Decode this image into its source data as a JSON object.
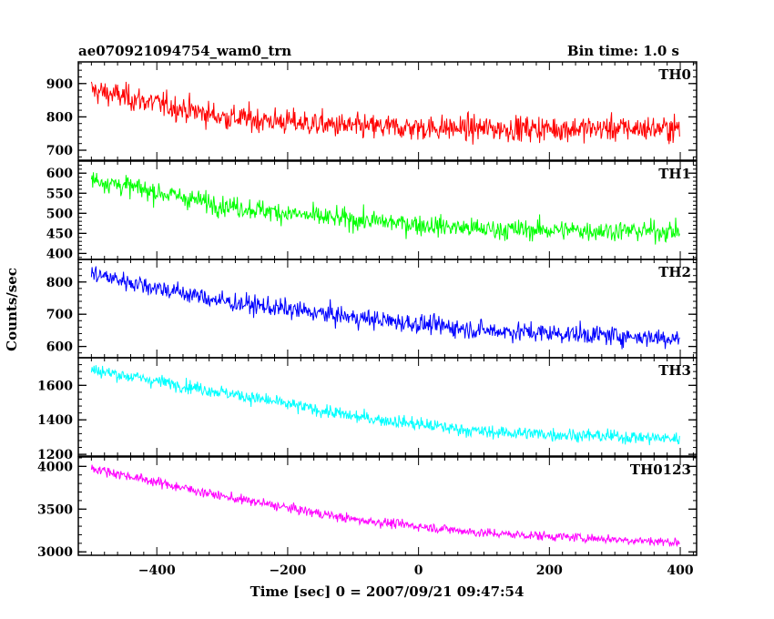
{
  "header": {
    "title": "ae070921094754_wam0_trn",
    "bin_time": "Bin time: 1.0 s"
  },
  "chart_data": {
    "type": "line",
    "title": "ae070921094754_wam0_trn",
    "xlabel": "Time [sec] 0 = 2007/09/21 09:47:54",
    "ylabel": "Counts/sec",
    "xlim": [
      -520,
      425
    ],
    "x_range": [
      -500,
      399
    ],
    "x_ticks": [
      -400,
      -200,
      0,
      200,
      400
    ],
    "bin_seconds": 1.0,
    "panels": [
      {
        "name": "TH0",
        "color": "#ff0000",
        "ylim": [
          670,
          965
        ],
        "y_ticks": [
          700,
          800,
          900
        ],
        "trend": [
          [
            -500,
            880
          ],
          [
            -300,
            800
          ],
          [
            -100,
            770
          ],
          [
            100,
            765
          ],
          [
            400,
            765
          ]
        ],
        "noise": 45
      },
      {
        "name": "TH1",
        "color": "#00ff00",
        "ylim": [
          385,
          630
        ],
        "y_ticks": [
          400,
          450,
          500,
          550,
          600
        ],
        "trend": [
          [
            -500,
            585
          ],
          [
            -300,
            520
          ],
          [
            -150,
            490
          ],
          [
            100,
            460
          ],
          [
            400,
            455
          ]
        ],
        "noise": 30
      },
      {
        "name": "TH2",
        "color": "#0000ff",
        "ylim": [
          565,
          870
        ],
        "y_ticks": [
          600,
          700,
          800
        ],
        "trend": [
          [
            -500,
            825
          ],
          [
            -300,
            740
          ],
          [
            -100,
            690
          ],
          [
            100,
            650
          ],
          [
            400,
            625
          ]
        ],
        "noise": 35
      },
      {
        "name": "TH3",
        "color": "#00ffff",
        "ylim": [
          1190,
          1760
        ],
        "y_ticks": [
          1200,
          1400,
          1600
        ],
        "trend": [
          [
            -500,
            1690
          ],
          [
            -300,
            1560
          ],
          [
            -100,
            1420
          ],
          [
            100,
            1330
          ],
          [
            400,
            1290
          ]
        ],
        "noise": 45
      },
      {
        "name": "TH0123",
        "color": "#ff00ff",
        "ylim": [
          2960,
          4110
        ],
        "y_ticks": [
          3000,
          3500,
          4000
        ],
        "trend": [
          [
            -500,
            3980
          ],
          [
            -300,
            3650
          ],
          [
            -100,
            3380
          ],
          [
            100,
            3220
          ],
          [
            400,
            3110
          ]
        ],
        "noise": 65
      }
    ]
  }
}
